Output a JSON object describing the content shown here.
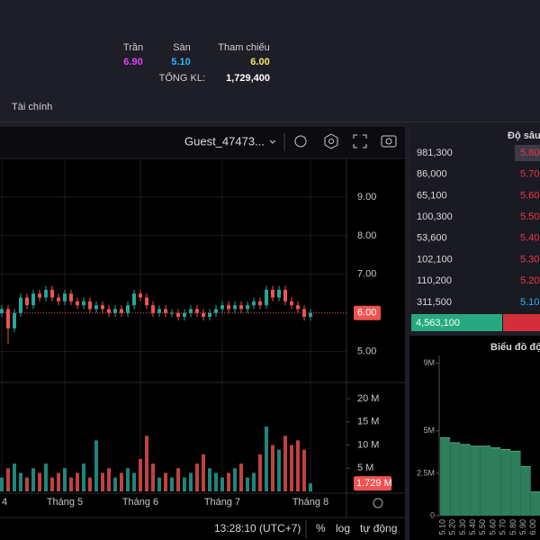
{
  "header": {
    "ceiling": {
      "label": "Trần",
      "value": "6.90"
    },
    "floor": {
      "label": "Sàn",
      "value": "5.10"
    },
    "reference": {
      "label": "Tham chiếu",
      "value": "6.00"
    },
    "total_volume": {
      "label": "TỔNG KL:",
      "value": "1,729,400"
    }
  },
  "tab": "Tài chính",
  "toolbar": {
    "user": "Guest_47473..."
  },
  "footer": {
    "time": "13:28:10 (UTC+7)",
    "percent": "%",
    "log": "log",
    "auto": "tự động"
  },
  "order_book": {
    "title": "Độ sâu",
    "rows": [
      {
        "volume": "981,300",
        "price": "5.80"
      },
      {
        "volume": "86,000",
        "price": "5.70"
      },
      {
        "volume": "65,100",
        "price": "5.60"
      },
      {
        "volume": "100,300",
        "price": "5.50"
      },
      {
        "volume": "53,600",
        "price": "5.40"
      },
      {
        "volume": "102,100",
        "price": "5.30"
      },
      {
        "volume": "110,200",
        "price": "5.20"
      },
      {
        "volume": "311,500",
        "price": "5.10"
      }
    ],
    "total_bid": "4,563,100"
  },
  "chart_data": [
    {
      "type": "candlestick",
      "up_color": "#26a69a",
      "down_color": "#ef5350",
      "categories": [
        "4",
        null,
        null,
        null,
        null,
        null,
        null,
        null,
        null,
        null,
        "Tháng 5",
        null,
        null,
        null,
        null,
        null,
        null,
        null,
        null,
        null,
        null,
        null,
        "Tháng 6",
        null,
        null,
        null,
        null,
        null,
        null,
        null,
        null,
        null,
        null,
        null,
        null,
        "Tháng 7",
        null,
        null,
        null,
        null,
        null,
        null,
        null,
        null,
        null,
        null,
        null,
        null,
        null,
        "Tháng 8"
      ],
      "open": [
        6.0,
        6.1,
        5.6,
        6.0,
        6.4,
        6.2,
        6.5,
        6.4,
        6.6,
        6.4,
        6.3,
        6.5,
        6.3,
        6.2,
        6.3,
        6.1,
        6.2,
        6.1,
        6.0,
        6.1,
        6.0,
        6.2,
        6.5,
        6.4,
        6.2,
        6.0,
        6.1,
        6.0,
        6.0,
        5.9,
        6.0,
        6.1,
        6.0,
        5.9,
        6.0,
        6.1,
        6.2,
        6.1,
        6.2,
        6.1,
        6.2,
        6.3,
        6.2,
        6.6,
        6.4,
        6.6,
        6.3,
        6.2,
        6.1,
        5.9
      ],
      "high": [
        6.2,
        6.2,
        6.1,
        6.5,
        6.5,
        6.6,
        6.6,
        6.7,
        6.7,
        6.5,
        6.6,
        6.6,
        6.4,
        6.4,
        6.4,
        6.3,
        6.3,
        6.2,
        6.2,
        6.2,
        6.3,
        6.6,
        6.6,
        6.5,
        6.3,
        6.2,
        6.2,
        6.1,
        6.1,
        6.1,
        6.2,
        6.2,
        6.1,
        6.1,
        6.2,
        6.3,
        6.3,
        6.3,
        6.3,
        6.3,
        6.4,
        6.4,
        6.7,
        6.7,
        6.7,
        6.7,
        6.4,
        6.3,
        6.2,
        6.1
      ],
      "low": [
        5.9,
        5.2,
        5.5,
        5.9,
        6.1,
        6.1,
        6.3,
        6.3,
        6.3,
        6.2,
        6.2,
        6.2,
        6.1,
        6.1,
        6.0,
        6.0,
        6.0,
        5.9,
        5.9,
        5.9,
        5.9,
        6.1,
        6.3,
        6.1,
        5.9,
        5.9,
        5.9,
        5.9,
        5.8,
        5.8,
        5.9,
        5.9,
        5.8,
        5.8,
        5.9,
        6.0,
        6.0,
        6.0,
        6.0,
        6.0,
        6.1,
        6.1,
        6.1,
        6.3,
        6.3,
        6.2,
        6.1,
        6.0,
        5.8,
        5.8
      ],
      "close": [
        6.1,
        5.6,
        6.0,
        6.4,
        6.2,
        6.5,
        6.4,
        6.6,
        6.4,
        6.3,
        6.5,
        6.3,
        6.2,
        6.3,
        6.1,
        6.2,
        6.1,
        6.0,
        6.1,
        6.0,
        6.2,
        6.5,
        6.4,
        6.2,
        6.0,
        6.1,
        6.0,
        6.0,
        5.9,
        6.0,
        6.1,
        6.0,
        5.9,
        6.0,
        6.1,
        6.2,
        6.1,
        6.2,
        6.1,
        6.2,
        6.3,
        6.2,
        6.6,
        6.4,
        6.6,
        6.3,
        6.2,
        6.1,
        5.9,
        6.0
      ],
      "volume": [
        3,
        5,
        6,
        4,
        3,
        5,
        4,
        6,
        3,
        4,
        5,
        3,
        4,
        6,
        3,
        11,
        4,
        5,
        3,
        4,
        5,
        4,
        7,
        12,
        6,
        3,
        4,
        3,
        5,
        3,
        4,
        6,
        8,
        5,
        4,
        3,
        4,
        5,
        6,
        3,
        4,
        8,
        14,
        10,
        9,
        12,
        10,
        11,
        9,
        1.729
      ],
      "ylim": [
        4.2,
        10
      ],
      "yticks": [
        {
          "value": 5,
          "label": "5.00"
        },
        {
          "value": 7,
          "label": "7.00"
        },
        {
          "value": 8,
          "label": "8.00"
        },
        {
          "value": 9,
          "label": "9.00"
        }
      ],
      "last_price": {
        "value": 6,
        "label": "6.00"
      },
      "volume_ylim": [
        0,
        23.5
      ],
      "volume_yticks": [
        {
          "value": 5,
          "label": "5 M"
        },
        {
          "value": 10,
          "label": "10 M"
        },
        {
          "value": 15,
          "label": "15 M"
        },
        {
          "value": 20,
          "label": "20 M"
        }
      ],
      "last_volume": {
        "value": 1.729,
        "label": "1.729 M"
      }
    },
    {
      "type": "area",
      "title": "Biểu đồ độ",
      "color": "#2e7d5b",
      "categories": [
        "5.10",
        "5.20",
        "5.30",
        "5.40",
        "5.50",
        "5.60",
        "5.70",
        "5.80",
        "5.90",
        "6.00"
      ],
      "values": [
        4.6,
        4.3,
        4.2,
        4.1,
        4.1,
        4.0,
        3.9,
        3.8,
        2.9,
        1.4
      ],
      "ylim": [
        0,
        9.5
      ],
      "yticks": [
        0,
        {
          "value": 2.5,
          "label": "2.5M"
        },
        {
          "value": 5,
          "label": "5M"
        },
        {
          "value": 9,
          "label": "9M"
        }
      ]
    }
  ]
}
